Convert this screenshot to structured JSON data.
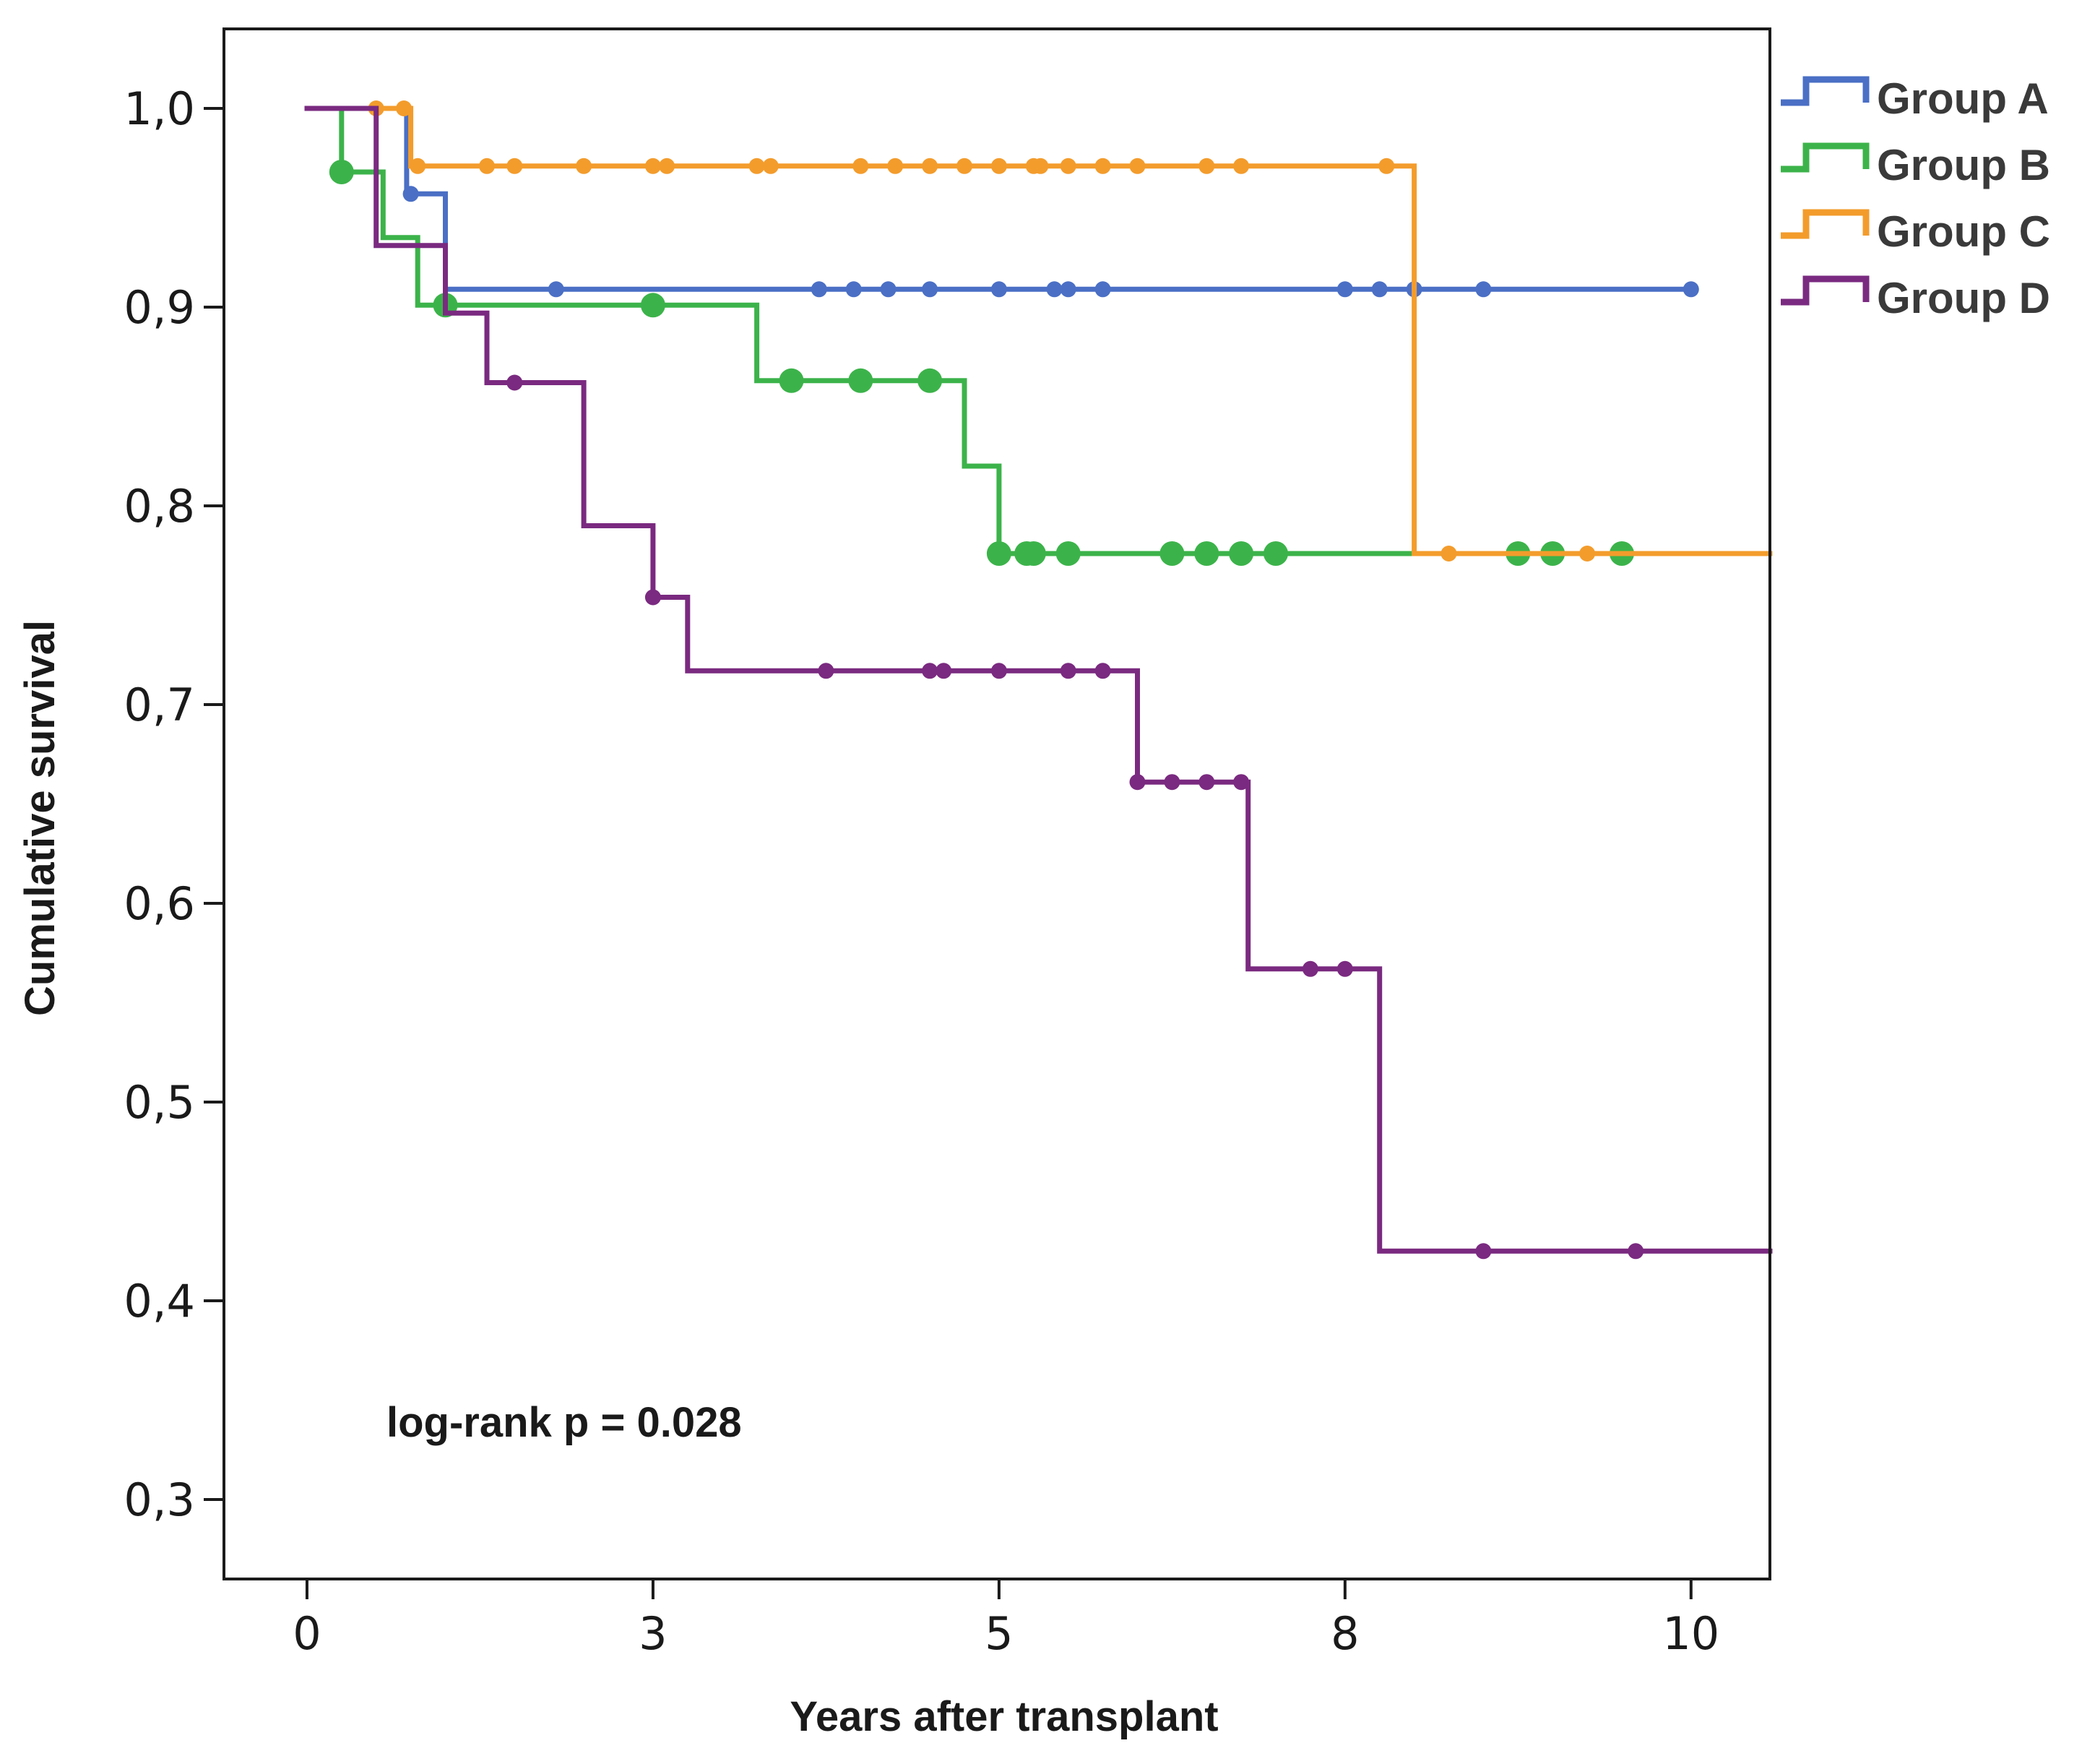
{
  "chart_data": {
    "type": "line",
    "subtype": "kaplan-meier",
    "title": "",
    "xlabel": "Years after transplant",
    "ylabel": "Cumulative survival",
    "xlim": [
      -0.6,
      10.57
    ],
    "ylim": [
      0.26,
      1.04
    ],
    "x_ticks": [
      0,
      2.5,
      5,
      7.5,
      10
    ],
    "x_tick_labels": [
      "0",
      "3",
      "5",
      "8",
      "10"
    ],
    "y_ticks": [
      0.3,
      0.4,
      0.5,
      0.6,
      0.7,
      0.8,
      0.9,
      1.0
    ],
    "y_tick_labels": [
      "0,3",
      "0,4",
      "0,5",
      "0,6",
      "0,7",
      "0,8",
      "0,9",
      "1,0"
    ],
    "grid": false,
    "legend_position": "outside-top-right",
    "annotation": "log-rank p = 0.028",
    "series": [
      {
        "name": "Group A",
        "color": "#4a6fc5",
        "marker_size": "small",
        "steps": [
          [
            0.5,
            1.0
          ],
          [
            0.72,
            0.957
          ],
          [
            1.0,
            0.909
          ],
          [
            10.0,
            0.909
          ]
        ],
        "censored": [
          [
            0.75,
            0.957
          ],
          [
            1.8,
            0.909
          ],
          [
            3.7,
            0.909
          ],
          [
            3.95,
            0.909
          ],
          [
            4.2,
            0.909
          ],
          [
            4.5,
            0.909
          ],
          [
            5.0,
            0.909
          ],
          [
            5.4,
            0.909
          ],
          [
            5.5,
            0.909
          ],
          [
            5.75,
            0.909
          ],
          [
            7.5,
            0.909
          ],
          [
            7.75,
            0.909
          ],
          [
            8.0,
            0.909
          ],
          [
            8.5,
            0.909
          ],
          [
            10.0,
            0.909
          ]
        ]
      },
      {
        "name": "Group B",
        "color": "#3cb34a",
        "marker_size": "large",
        "steps": [
          [
            0.0,
            1.0
          ],
          [
            0.25,
            0.968
          ],
          [
            0.55,
            0.935
          ],
          [
            0.8,
            0.901
          ],
          [
            3.25,
            0.863
          ],
          [
            4.75,
            0.82
          ],
          [
            5.0,
            0.776
          ],
          [
            10.57,
            0.776
          ]
        ],
        "censored": [
          [
            0.25,
            0.968
          ],
          [
            1.0,
            0.901
          ],
          [
            2.5,
            0.901
          ],
          [
            3.5,
            0.863
          ],
          [
            4.0,
            0.863
          ],
          [
            4.5,
            0.863
          ],
          [
            5.0,
            0.776
          ],
          [
            5.2,
            0.776
          ],
          [
            5.25,
            0.776
          ],
          [
            5.5,
            0.776
          ],
          [
            6.25,
            0.776
          ],
          [
            6.5,
            0.776
          ],
          [
            6.75,
            0.776
          ],
          [
            7.0,
            0.776
          ],
          [
            8.75,
            0.776
          ],
          [
            9.0,
            0.776
          ],
          [
            9.5,
            0.776
          ]
        ]
      },
      {
        "name": "Group C",
        "color": "#f39c2c",
        "marker_size": "small",
        "steps": [
          [
            0.5,
            1.0
          ],
          [
            0.75,
            0.971
          ],
          [
            8.0,
            0.776
          ],
          [
            10.57,
            0.776
          ]
        ],
        "censored": [
          [
            0.5,
            1.0
          ],
          [
            0.7,
            1.0
          ],
          [
            0.8,
            0.971
          ],
          [
            1.3,
            0.971
          ],
          [
            1.5,
            0.971
          ],
          [
            2.0,
            0.971
          ],
          [
            2.5,
            0.971
          ],
          [
            2.6,
            0.971
          ],
          [
            3.25,
            0.971
          ],
          [
            3.35,
            0.971
          ],
          [
            4.0,
            0.971
          ],
          [
            4.25,
            0.971
          ],
          [
            4.5,
            0.971
          ],
          [
            4.75,
            0.971
          ],
          [
            5.0,
            0.971
          ],
          [
            5.25,
            0.971
          ],
          [
            5.3,
            0.971
          ],
          [
            5.5,
            0.971
          ],
          [
            5.75,
            0.971
          ],
          [
            6.0,
            0.971
          ],
          [
            6.5,
            0.971
          ],
          [
            6.75,
            0.971
          ],
          [
            7.8,
            0.971
          ],
          [
            8.25,
            0.776
          ],
          [
            9.25,
            0.776
          ]
        ]
      },
      {
        "name": "Group D",
        "color": "#7a2a80",
        "marker_size": "small",
        "steps": [
          [
            0.0,
            1.0
          ],
          [
            0.5,
            0.931
          ],
          [
            1.0,
            0.897
          ],
          [
            1.3,
            0.862
          ],
          [
            2.0,
            0.79
          ],
          [
            2.5,
            0.754
          ],
          [
            2.75,
            0.717
          ],
          [
            6.0,
            0.661
          ],
          [
            6.8,
            0.567
          ],
          [
            7.75,
            0.425
          ],
          [
            10.57,
            0.425
          ]
        ],
        "censored": [
          [
            1.5,
            0.862
          ],
          [
            2.5,
            0.754
          ],
          [
            3.75,
            0.717
          ],
          [
            4.5,
            0.717
          ],
          [
            4.6,
            0.717
          ],
          [
            5.0,
            0.717
          ],
          [
            5.5,
            0.717
          ],
          [
            5.75,
            0.717
          ],
          [
            6.0,
            0.661
          ],
          [
            6.25,
            0.661
          ],
          [
            6.5,
            0.661
          ],
          [
            6.75,
            0.661
          ],
          [
            7.25,
            0.567
          ],
          [
            7.5,
            0.567
          ],
          [
            8.5,
            0.425
          ],
          [
            9.6,
            0.425
          ]
        ]
      }
    ]
  }
}
